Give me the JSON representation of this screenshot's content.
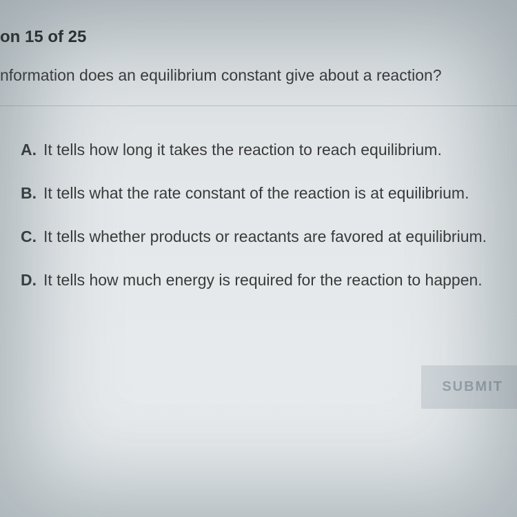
{
  "header": {
    "progress_label": "on 15 of 25"
  },
  "question": {
    "text": "nformation does an equilibrium constant give about a reaction?"
  },
  "options": [
    {
      "letter": "A.",
      "text": "It tells how long it takes the reaction to reach equilibrium."
    },
    {
      "letter": "B.",
      "text": "It tells what the rate constant of the reaction is at equilibrium."
    },
    {
      "letter": "C.",
      "text": "It tells whether products or reactants are favored at equilibrium."
    },
    {
      "letter": "D.",
      "text": "It tells how much energy is required for the reaction to happen."
    }
  ],
  "buttons": {
    "submit_label": "SUBMIT"
  },
  "styling": {
    "background_gradient_start": "#d8dde0",
    "background_gradient_end": "#e8ecee",
    "text_color": "#3a3a3a",
    "header_color": "#2a2a2a",
    "divider_color": "#b8bfc4",
    "submit_bg": "#d0d6da",
    "submit_text": "#9aa4ac",
    "header_fontsize": 24,
    "question_fontsize": 23,
    "option_fontsize": 23,
    "submit_fontsize": 20,
    "option_spacing": 36,
    "font_weight_bold": 700,
    "font_weight_normal": 400
  }
}
